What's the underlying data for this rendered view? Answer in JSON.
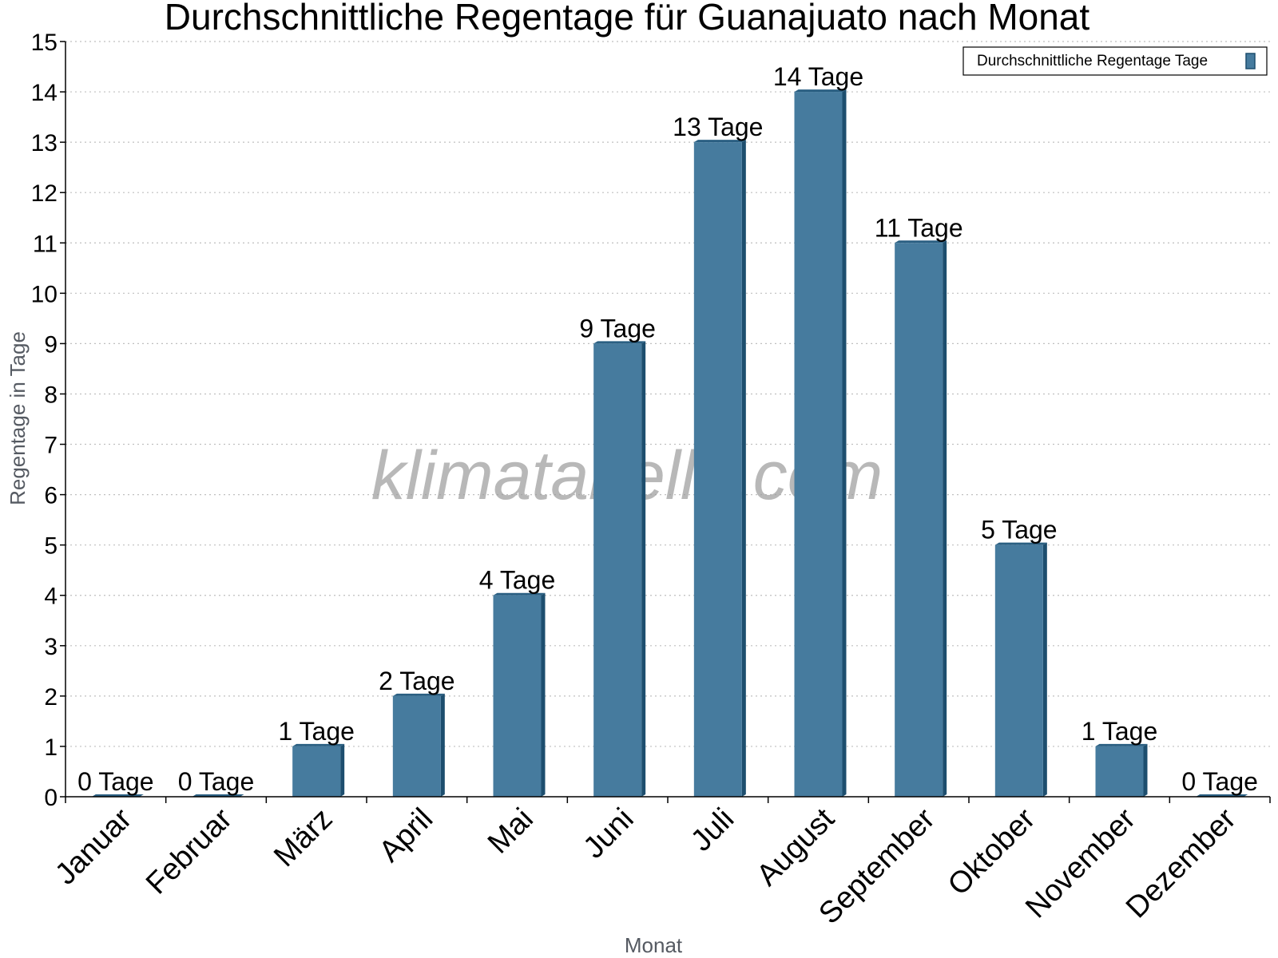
{
  "chart_data": {
    "type": "bar",
    "title": "Durchschnittliche Regentage für Guanajuato nach Monat",
    "xlabel": "Monat",
    "ylabel": "Regentage in Tage",
    "categories": [
      "Januar",
      "Februar",
      "März",
      "April",
      "Mai",
      "Juni",
      "Juli",
      "August",
      "September",
      "Oktober",
      "November",
      "Dezember"
    ],
    "series": [
      {
        "name": "Durchschnittliche Regentage Tage",
        "values": [
          0,
          0,
          1,
          2,
          4,
          9,
          13,
          14,
          11,
          5,
          1,
          0
        ],
        "data_labels": [
          "0 Tage",
          "0 Tage",
          "1 Tage",
          "2 Tage",
          "4 Tage",
          "9 Tage",
          "13 Tage",
          "14 Tage",
          "11 Tage",
          "5 Tage",
          "1 Tage",
          "0 Tage"
        ],
        "color": "#467b9e"
      }
    ],
    "ylim": [
      0,
      15
    ],
    "yticks": [
      "0",
      "1",
      "2",
      "3",
      "4",
      "5",
      "6",
      "7",
      "8",
      "9",
      "10",
      "11",
      "12",
      "13",
      "14",
      "15"
    ],
    "grid": "horizontal dotted",
    "legend_position": "top-right",
    "watermark": "klimatabelle.com"
  },
  "colors": {
    "bar": "#467b9e",
    "bar_side": "#1d4e6e",
    "bar_top": "#2a5f82",
    "grid": "#bfbfbf",
    "axis": "#000000"
  }
}
